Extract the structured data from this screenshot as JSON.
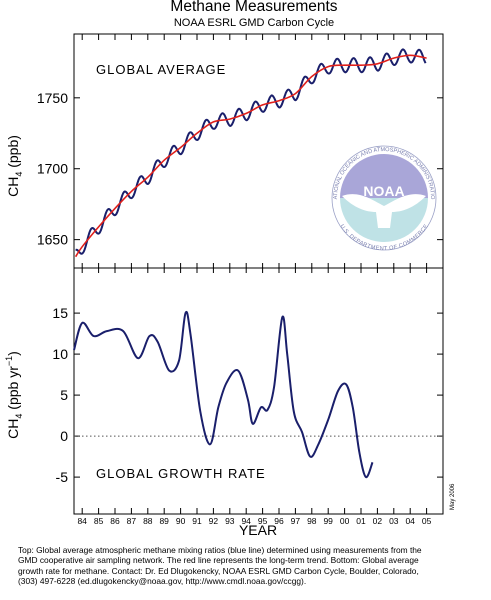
{
  "chart_data": [
    {
      "type": "line",
      "title": "Methane Measurements",
      "subtitle": "NOAA ESRL GMD Carbon Cycle",
      "panel_label": "GLOBAL AVERAGE",
      "ylabel": "CH4 (ppb)",
      "ylim": [
        1630,
        1795
      ],
      "yticks": [
        "1650",
        "1700",
        "1750"
      ],
      "xlim": [
        1983.5,
        2006.0
      ],
      "colors": {
        "monthly": "#1a1f6b",
        "trend": "#e0201b"
      },
      "trend_points": [
        [
          1983.6,
          1638
        ],
        [
          1984.0,
          1645
        ],
        [
          1985.0,
          1659
        ],
        [
          1986.0,
          1672
        ],
        [
          1987.0,
          1684
        ],
        [
          1988.0,
          1694
        ],
        [
          1989.0,
          1706
        ],
        [
          1990.0,
          1715
        ],
        [
          1991.0,
          1725
        ],
        [
          1992.0,
          1733
        ],
        [
          1993.0,
          1735
        ],
        [
          1994.0,
          1739
        ],
        [
          1995.0,
          1745
        ],
        [
          1996.0,
          1748
        ],
        [
          1997.0,
          1753
        ],
        [
          1998.0,
          1765
        ],
        [
          1999.0,
          1772
        ],
        [
          2000.0,
          1773
        ],
        [
          2001.0,
          1773
        ],
        [
          2002.0,
          1774
        ],
        [
          2003.0,
          1778
        ],
        [
          2004.0,
          1780
        ],
        [
          2005.0,
          1778
        ]
      ],
      "series": [
        {
          "name": "Global average (monthly)",
          "seasonal_amplitude_ppb": 5
        },
        {
          "name": "Long-term trend"
        }
      ],
      "logo": {
        "name": "NOAA",
        "ring_text_top": "NATIONAL OCEANIC AND ATMOSPHERIC ADMINISTRATION",
        "ring_text_bottom": "U.S. DEPARTMENT OF COMMERCE"
      }
    },
    {
      "type": "line",
      "panel_label": "GLOBAL GROWTH RATE",
      "ylabel": "CH4 (ppb yr-1)",
      "xlabel": "YEAR",
      "ylim": [
        -9.5,
        20.5
      ],
      "yticks": [
        "15",
        "10",
        "5",
        "0",
        "-5"
      ],
      "xlim": [
        1983.5,
        2006.0
      ],
      "xticks": [
        "84",
        "85",
        "86",
        "87",
        "88",
        "89",
        "90",
        "91",
        "92",
        "93",
        "94",
        "95",
        "96",
        "97",
        "98",
        "99",
        "00",
        "01",
        "02",
        "03",
        "04",
        "05"
      ],
      "zero_line": "dotted",
      "date_stamp": "May 2006",
      "points": [
        [
          1983.5,
          10.5
        ],
        [
          1984.0,
          13.8
        ],
        [
          1984.7,
          12.2
        ],
        [
          1985.5,
          12.8
        ],
        [
          1986.5,
          12.8
        ],
        [
          1987.4,
          9.5
        ],
        [
          1988.1,
          12.2
        ],
        [
          1988.6,
          11.5
        ],
        [
          1989.3,
          8.0
        ],
        [
          1989.9,
          9.2
        ],
        [
          1990.3,
          15.0
        ],
        [
          1990.6,
          12.5
        ],
        [
          1991.2,
          3.0
        ],
        [
          1991.8,
          -1.0
        ],
        [
          1992.3,
          3.5
        ],
        [
          1992.8,
          6.5
        ],
        [
          1993.5,
          8.0
        ],
        [
          1994.1,
          4.5
        ],
        [
          1994.4,
          1.5
        ],
        [
          1994.9,
          3.5
        ],
        [
          1995.3,
          3.2
        ],
        [
          1995.7,
          6.0
        ],
        [
          1996.2,
          14.5
        ],
        [
          1996.5,
          10.0
        ],
        [
          1996.9,
          3.0
        ],
        [
          1997.4,
          0.5
        ],
        [
          1997.9,
          -2.5
        ],
        [
          1998.4,
          -1.0
        ],
        [
          1999.0,
          2.0
        ],
        [
          1999.6,
          5.5
        ],
        [
          2000.1,
          6.3
        ],
        [
          2000.5,
          3.5
        ],
        [
          2000.9,
          -2.0
        ],
        [
          2001.3,
          -5.0
        ],
        [
          2001.7,
          -3.2
        ]
      ]
    }
  ],
  "caption": {
    "lines": [
      "Top:  Global average atmospheric methane mixing ratios (blue line) determined using measurements from the",
      "GMD cooperative air sampling network.  The red line represents the long-term trend.  Bottom:  Global average",
      "growth rate for methane.  Contact:  Dr. Ed Dlugokencky, NOAA ESRL GMD Carbon Cycle, Boulder, Colorado,",
      "(303) 497-6228 (ed.dlugokencky@noaa.gov, http://www.cmdl.noaa.gov/ccgg)."
    ]
  }
}
